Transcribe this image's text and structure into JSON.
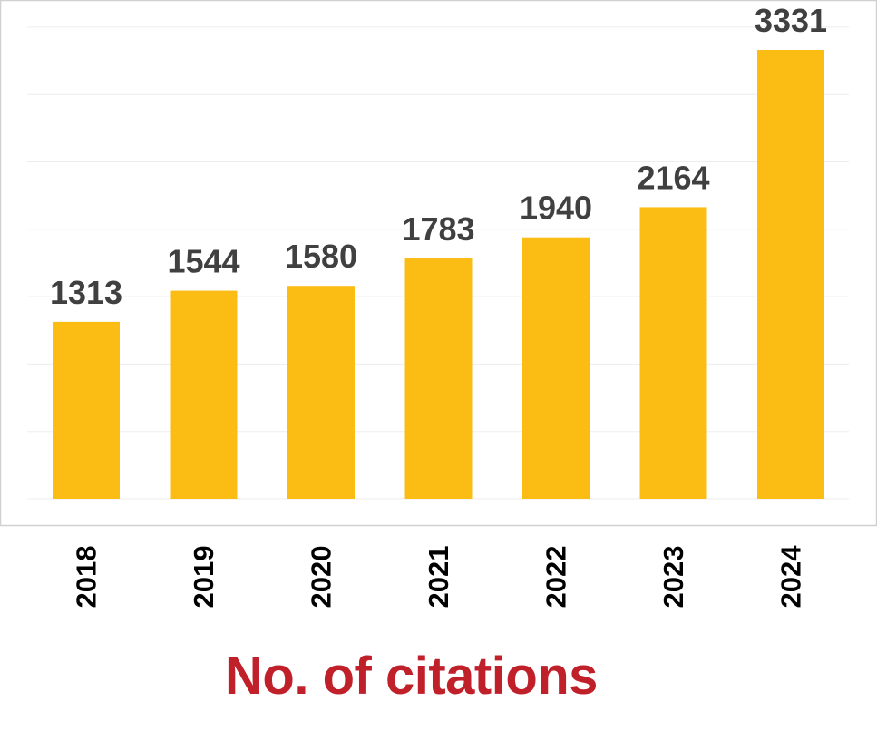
{
  "caption": "No. of citations",
  "colors": {
    "bar": "#FBBC14",
    "value_label": "#404040",
    "tick_label": "#000000",
    "caption": "#C0202A",
    "grid": "#EDEDED",
    "frame": "#D0D0D0"
  },
  "chart_data": {
    "type": "bar",
    "categories": [
      "2018",
      "2019",
      "2020",
      "2021",
      "2022",
      "2023",
      "2024"
    ],
    "values": [
      1313,
      1544,
      1580,
      1783,
      1940,
      2164,
      3331
    ],
    "title": "",
    "xlabel": "No. of citations",
    "ylabel": "",
    "ylim": [
      0,
      3500
    ],
    "grid": true,
    "data_labels": true,
    "tick_rotation": "vertical",
    "legend": "none"
  }
}
